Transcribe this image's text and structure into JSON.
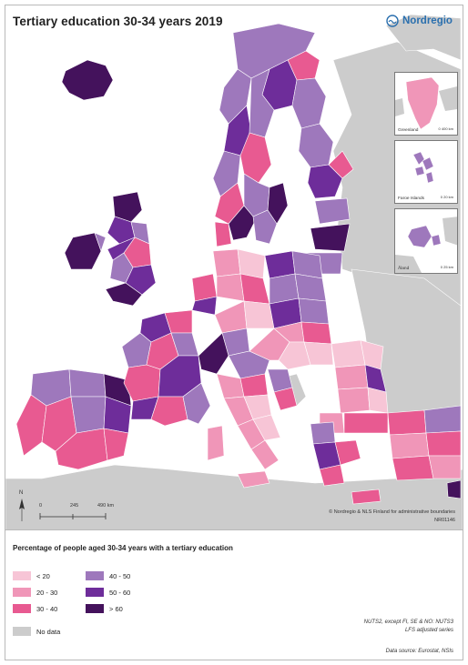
{
  "title": "Tertiary education 30-34 years 2019",
  "brand": {
    "name": "Nordregio",
    "color": "#2a6fae",
    "icon": "nordregio-wave-logo-icon"
  },
  "colors": {
    "c_lt20": "#f7c5d6",
    "c_20_30": "#f096b8",
    "c_30_40": "#e85a91",
    "c_40_50": "#9e78bc",
    "c_50_60": "#6e2d9a",
    "c_gt60": "#44125c",
    "no_data": "#cccccc",
    "sea": "#ffffff",
    "border": "#ffffff"
  },
  "insets": [
    {
      "label": "Greenland",
      "scale": "0   400 km"
    },
    {
      "label": "Faroe Islands",
      "scale": "0   20 km"
    },
    {
      "label": "Åland",
      "scale": "0   25 km"
    }
  ],
  "scale_bar": {
    "labels": [
      "0",
      "245",
      "490 km"
    ]
  },
  "north_label": "N",
  "credits": [
    "© Nordregio & NLS Finland for administrative boundaries",
    "NR01146"
  ],
  "legend": {
    "title": "Percentage of people aged 30-34 years with a tertiary education",
    "items": [
      {
        "label": "< 20",
        "key": "c_lt20"
      },
      {
        "label": "20 - 30",
        "key": "c_20_30"
      },
      {
        "label": "30 - 40",
        "key": "c_30_40"
      },
      {
        "label": "40 - 50",
        "key": "c_40_50"
      },
      {
        "label": "50 - 60",
        "key": "c_50_60"
      },
      {
        "label": "> 60",
        "key": "c_gt60"
      },
      {
        "label": "No data",
        "key": "no_data"
      }
    ]
  },
  "notes": {
    "nuts": "NUTS2, except FI, SE & NO: NUTS3",
    "lfs": "LFS adjusted series",
    "source": "Data source: Eurostat, NSIs"
  }
}
